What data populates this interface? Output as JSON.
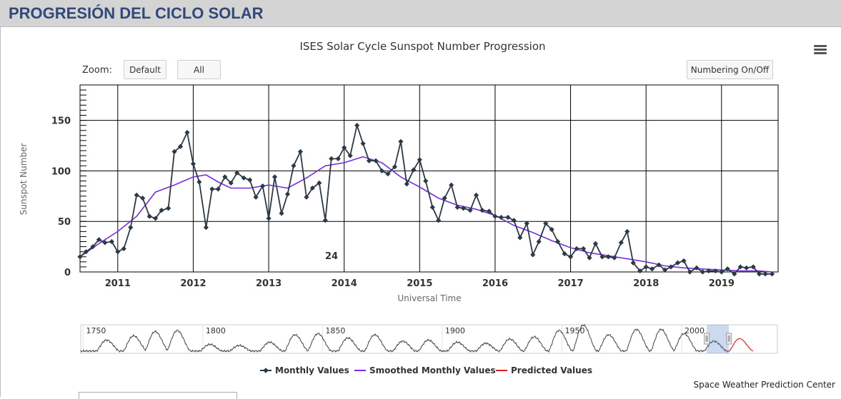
{
  "page": {
    "header_title": "PROGRESIÓN DEL CICLO SOLAR",
    "credit": "Space Weather Prediction Center"
  },
  "toolbar": {
    "zoom_label": "Zoom:",
    "default_label": "Default",
    "all_label": "All",
    "numbering_label": "Numbering On/Off"
  },
  "colors": {
    "monthly": "#2b3a46",
    "smoothed": "#7a2ee0",
    "predicted": "#e52020",
    "grid": "#000000",
    "header_text": "#2f4a7a"
  },
  "icons": {
    "menu": "hamburger-menu-icon",
    "marker": "diamond-marker-icon"
  },
  "chart_data": {
    "type": "line",
    "title": "ISES Solar Cycle Sunspot Number Progression",
    "xlabel": "Universal Time",
    "ylabel": "Sunspot Number",
    "x_unit": "year (decimal)",
    "xlim": [
      2010.5,
      2019.75
    ],
    "ylim": [
      0,
      185
    ],
    "yticks": [
      0,
      50,
      100,
      150
    ],
    "xticks": [
      2011,
      2012,
      2013,
      2014,
      2015,
      2016,
      2017,
      2018,
      2019
    ],
    "grid": true,
    "legend_position": "bottom-center",
    "cycle_label": "24",
    "series": [
      {
        "name": "Monthly Values",
        "x": [
          2010.5,
          2010.58,
          2010.67,
          2010.75,
          2010.83,
          2010.92,
          2011.0,
          2011.08,
          2011.17,
          2011.25,
          2011.33,
          2011.42,
          2011.5,
          2011.58,
          2011.67,
          2011.75,
          2011.83,
          2011.92,
          2012.0,
          2012.08,
          2012.17,
          2012.25,
          2012.33,
          2012.42,
          2012.5,
          2012.58,
          2012.67,
          2012.75,
          2012.83,
          2012.92,
          2013.0,
          2013.08,
          2013.17,
          2013.25,
          2013.33,
          2013.42,
          2013.5,
          2013.58,
          2013.67,
          2013.75,
          2013.83,
          2013.92,
          2014.0,
          2014.08,
          2014.17,
          2014.25,
          2014.33,
          2014.42,
          2014.5,
          2014.58,
          2014.67,
          2014.75,
          2014.83,
          2014.92,
          2015.0,
          2015.08,
          2015.17,
          2015.25,
          2015.33,
          2015.42,
          2015.5,
          2015.58,
          2015.67,
          2015.75,
          2015.83,
          2015.92,
          2016.0,
          2016.08,
          2016.17,
          2016.25,
          2016.33,
          2016.42,
          2016.5,
          2016.58,
          2016.67,
          2016.75,
          2016.83,
          2016.92,
          2017.0,
          2017.08,
          2017.17,
          2017.25,
          2017.33,
          2017.42,
          2017.5,
          2017.58,
          2017.67,
          2017.75,
          2017.83,
          2017.92,
          2018.0,
          2018.08,
          2018.17,
          2018.25,
          2018.33,
          2018.42,
          2018.5,
          2018.58,
          2018.67,
          2018.75,
          2018.83,
          2018.92,
          2019.0,
          2019.08,
          2019.17,
          2019.25,
          2019.33,
          2019.42,
          2019.5,
          2019.58,
          2019.67
        ],
        "values": [
          15,
          20,
          25,
          32,
          29,
          30,
          20,
          23,
          44,
          76,
          73,
          55,
          53,
          61,
          63,
          119,
          124,
          138,
          107,
          89,
          44,
          82,
          82,
          94,
          88,
          98,
          93,
          91,
          74,
          85,
          53,
          94,
          58,
          77,
          105,
          119,
          74,
          83,
          88,
          51,
          112,
          112,
          123,
          115,
          145,
          127,
          110,
          110,
          100,
          97,
          104,
          129,
          87,
          101,
          111,
          90,
          64,
          51,
          73,
          86,
          64,
          63,
          61,
          76,
          61,
          60,
          55,
          54,
          54,
          51,
          34,
          48,
          17,
          30,
          48,
          42,
          30,
          18,
          15,
          23,
          23,
          14,
          28,
          15,
          15,
          14,
          29,
          40,
          9,
          1,
          5,
          3,
          7,
          2,
          5,
          9,
          11,
          0,
          4,
          0,
          1,
          1,
          0,
          3,
          -2,
          5,
          4,
          5,
          -2,
          -2,
          -2
        ]
      },
      {
        "name": "Smoothed Monthly Values",
        "x": [
          2010.5,
          2010.75,
          2011.0,
          2011.25,
          2011.5,
          2011.75,
          2012.0,
          2012.17,
          2012.33,
          2012.5,
          2012.75,
          2013.0,
          2013.25,
          2013.5,
          2013.75,
          2014.0,
          2014.25,
          2014.5,
          2014.75,
          2015.0,
          2015.25,
          2015.5,
          2015.75,
          2016.0,
          2016.25,
          2016.5,
          2016.75,
          2017.0,
          2017.25,
          2017.5,
          2017.75,
          2018.0,
          2018.25,
          2018.5,
          2018.75,
          2019.0,
          2019.25,
          2019.5,
          2019.67
        ],
        "values": [
          15,
          28,
          40,
          55,
          79,
          86,
          94,
          96,
          89,
          83,
          83,
          86,
          83,
          93,
          105,
          108,
          114,
          108,
          94,
          84,
          73,
          66,
          62,
          56,
          46,
          39,
          31,
          24,
          19,
          16,
          13,
          10,
          6,
          4,
          3,
          2,
          1,
          1,
          0
        ]
      },
      {
        "name": "Predicted Values",
        "x": [],
        "values": []
      }
    ],
    "navigator": {
      "year_labels": [
        "1750",
        "1800",
        "1850",
        "1900",
        "1950",
        "2000"
      ],
      "xlim": [
        1749,
        2040
      ],
      "selection": [
        2010.5,
        2019.75
      ]
    }
  }
}
